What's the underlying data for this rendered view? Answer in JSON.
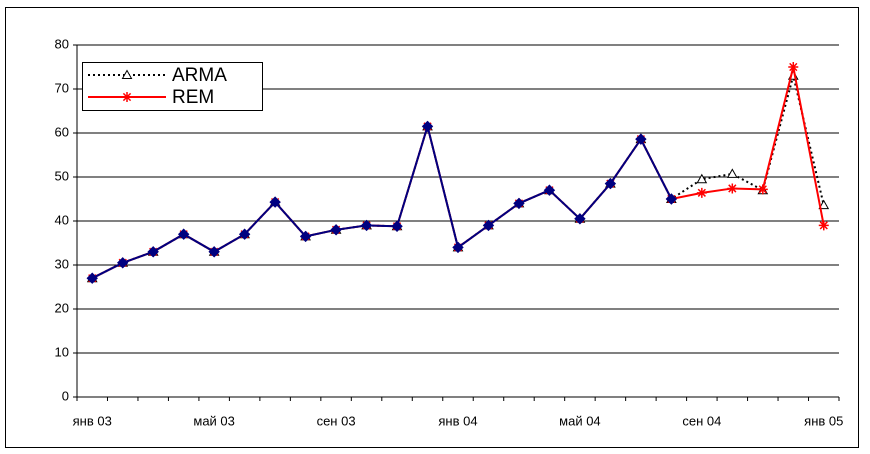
{
  "chart_data": {
    "type": "line",
    "categories": [
      "янв 03",
      null,
      null,
      null,
      "май 03",
      null,
      null,
      null,
      "сен 03",
      null,
      null,
      null,
      "янв 04",
      null,
      null,
      null,
      "май 04",
      null,
      null,
      null,
      "сен 04",
      null,
      null,
      null,
      "янв 05"
    ],
    "series": [
      {
        "name": "ARMA",
        "color": "#000000",
        "dashed": true,
        "marker": "triangle",
        "values": [
          27,
          30.5,
          33,
          37,
          33,
          37,
          44.3,
          36.5,
          38,
          39,
          38.8,
          61.5,
          34,
          39,
          44,
          47,
          40.5,
          48.5,
          58.6,
          45,
          49.5,
          50.7,
          47,
          73,
          43.6
        ]
      },
      {
        "name": "REM",
        "color": "#ff0000",
        "dashed": false,
        "marker": "asterisk",
        "values": [
          27,
          30.5,
          33,
          37,
          33,
          37,
          44.3,
          36.5,
          38,
          39,
          38.8,
          61.5,
          34,
          39,
          44,
          47,
          40.5,
          48.5,
          58.6,
          45,
          46.4,
          47.4,
          47.2,
          75,
          39
        ]
      },
      {
        "color": "#000080",
        "dashed": false,
        "marker": "diamond",
        "values": [
          27,
          30.5,
          33,
          37,
          33,
          37,
          44.3,
          36.5,
          38,
          39,
          38.8,
          61.5,
          34,
          39,
          44,
          47,
          40.5,
          48.5,
          58.6,
          45,
          null,
          null,
          null,
          null,
          null
        ]
      }
    ],
    "ylim": [
      0,
      80
    ],
    "yticks": [
      0,
      10,
      20,
      30,
      40,
      50,
      60,
      70,
      80
    ],
    "grid": true,
    "legend": "top-left"
  }
}
